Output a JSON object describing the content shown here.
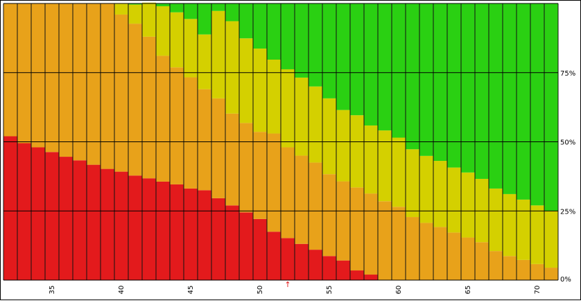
{
  "chart_data": {
    "type": "bar",
    "stacked": true,
    "normalized": true,
    "x": [
      32,
      33,
      34,
      35,
      36,
      37,
      38,
      39,
      40,
      41,
      42,
      43,
      44,
      45,
      46,
      47,
      48,
      49,
      50,
      51,
      52,
      53,
      54,
      55,
      56,
      57,
      58,
      59,
      60,
      61,
      62,
      63,
      64,
      65,
      66,
      67,
      68,
      69,
      70,
      71
    ],
    "x_ticks": [
      {
        "value": 35,
        "label": "35"
      },
      {
        "value": 40,
        "label": "40"
      },
      {
        "value": 45,
        "label": "45"
      },
      {
        "value": 50,
        "label": "50"
      },
      {
        "value": 55,
        "label": "55"
      },
      {
        "value": 60,
        "label": "60"
      },
      {
        "value": 65,
        "label": "65"
      },
      {
        "value": 70,
        "label": "70"
      }
    ],
    "y_ticks": [
      {
        "value": 0,
        "label": "0%"
      },
      {
        "value": 25,
        "label": "25%"
      },
      {
        "value": 50,
        "label": "50%"
      },
      {
        "value": 75,
        "label": "75%"
      }
    ],
    "ylim": [
      0,
      100
    ],
    "xlabel": "",
    "ylabel": "",
    "title": "",
    "grid": true,
    "y_axis_position": "right",
    "marker": {
      "x": 52,
      "glyph": "↑",
      "color": "#e01818"
    },
    "series": [
      {
        "color": "#e31a1c",
        "values": [
          52.0,
          49.5,
          48.0,
          46.3,
          44.6,
          43.3,
          41.7,
          40.2,
          39.2,
          37.8,
          36.8,
          35.6,
          34.6,
          33.1,
          32.5,
          29.6,
          27.0,
          24.5,
          22.1,
          17.5,
          15.2,
          13.1,
          11.0,
          8.7,
          7.1,
          3.5,
          2.0,
          0,
          0,
          0,
          0,
          0,
          0,
          0,
          0,
          0,
          0,
          0,
          0,
          0
        ]
      },
      {
        "color": "#e8a21a",
        "values": [
          48.0,
          50.5,
          52.0,
          53.7,
          55.4,
          56.7,
          58.3,
          59.8,
          56.8,
          54.9,
          51.2,
          45.5,
          42.3,
          40.2,
          36.5,
          36.1,
          33.2,
          32.3,
          31.5,
          35.5,
          32.8,
          31.9,
          31.5,
          29.6,
          28.6,
          30.0,
          29.3,
          28.5,
          26.5,
          22.8,
          20.7,
          19.2,
          17.2,
          15.4,
          13.7,
          10.5,
          8.7,
          7.3,
          5.8,
          4.5
        ]
      },
      {
        "color": "#d4d000",
        "values": [
          0,
          0,
          0,
          0,
          0,
          0,
          0,
          0,
          4.0,
          6.9,
          12.3,
          17.9,
          19.9,
          21.1,
          19.8,
          31.6,
          33.4,
          30.6,
          30.1,
          26.7,
          28.2,
          28.2,
          27.5,
          27.4,
          25.8,
          26.1,
          24.6,
          25.6,
          25.0,
          24.5,
          24.2,
          23.9,
          23.5,
          23.5,
          22.9,
          22.6,
          22.4,
          21.8,
          21.2,
          20.5
        ]
      },
      {
        "color": "#2ad012",
        "values": [
          0,
          0,
          0,
          0,
          0,
          0,
          0,
          0,
          0,
          0.4,
          0,
          1.0,
          3.2,
          5.6,
          11.2,
          2.7,
          6.4,
          12.6,
          16.3,
          20.3,
          23.8,
          26.8,
          30.0,
          34.3,
          38.5,
          40.4,
          44.1,
          45.9,
          48.5,
          52.7,
          55.1,
          56.9,
          59.3,
          61.1,
          63.4,
          66.9,
          68.9,
          70.9,
          73.0,
          75.0
        ]
      }
    ]
  }
}
